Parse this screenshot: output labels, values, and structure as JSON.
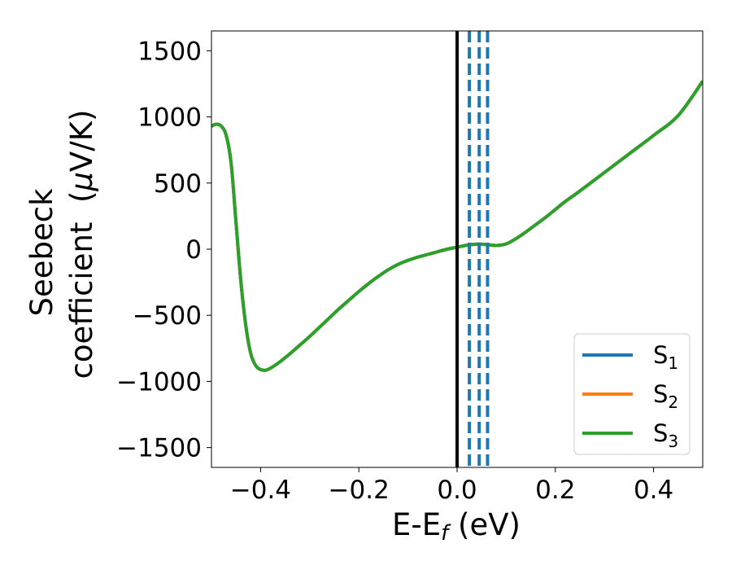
{
  "chart_data": {
    "type": "line",
    "title": "",
    "xlabel": {
      "main": "E-E",
      "sub": "f",
      "suffix": " (eV)"
    },
    "ylabel": {
      "line1": "Seebeck",
      "line2_prefix": "coefficient  (",
      "line2_mu": "μ",
      "line2_suffix": "V/K)"
    },
    "xlim": [
      -0.5,
      0.5
    ],
    "ylim": [
      -1650,
      1650
    ],
    "xticks": [
      -0.4,
      -0.2,
      0.0,
      0.2,
      0.4
    ],
    "xtick_labels": [
      "−0.4",
      "−0.2",
      "0.0",
      "0.2",
      "0.4"
    ],
    "yticks": [
      -1500,
      -1000,
      -500,
      0,
      500,
      1000,
      1500
    ],
    "ytick_labels": [
      "−1500",
      "−1000",
      "−500",
      "0",
      "500",
      "1000",
      "1500"
    ],
    "grid": false,
    "legend_position": "lower-right",
    "fermi_line_x": 0.0,
    "dashed_vlines_x": [
      0.025,
      0.045,
      0.062
    ],
    "dashed_vlines_color": "#1f77b4",
    "series": [
      {
        "name": "S",
        "subscript": "1",
        "color": "#1f77b4",
        "x": [
          -0.5,
          -0.49,
          -0.48,
          -0.47,
          -0.46,
          -0.45,
          -0.44,
          -0.43,
          -0.42,
          -0.41,
          -0.4,
          -0.39,
          -0.38,
          -0.36,
          -0.34,
          -0.32,
          -0.3,
          -0.28,
          -0.26,
          -0.24,
          -0.22,
          -0.2,
          -0.18,
          -0.16,
          -0.14,
          -0.12,
          -0.1,
          -0.08,
          -0.06,
          -0.04,
          -0.02,
          0.0,
          0.02,
          0.04,
          0.06,
          0.08,
          0.1,
          0.12,
          0.14,
          0.16,
          0.18,
          0.2,
          0.22,
          0.25,
          0.3,
          0.35,
          0.4,
          0.45,
          0.5
        ],
        "y": [
          930,
          945,
          930,
          860,
          650,
          200,
          -250,
          -580,
          -790,
          -880,
          -910,
          -915,
          -900,
          -850,
          -790,
          -725,
          -660,
          -590,
          -520,
          -450,
          -385,
          -320,
          -260,
          -205,
          -155,
          -115,
          -85,
          -60,
          -40,
          -20,
          0,
          15,
          30,
          38,
          35,
          28,
          40,
          80,
          130,
          185,
          240,
          300,
          360,
          440,
          580,
          720,
          860,
          1010,
          1270
        ]
      },
      {
        "name": "S",
        "subscript": "2",
        "color": "#ff7f0e",
        "x": [
          -0.5,
          -0.49,
          -0.48,
          -0.47,
          -0.46,
          -0.45,
          -0.44,
          -0.43,
          -0.42,
          -0.41,
          -0.4,
          -0.39,
          -0.38,
          -0.36,
          -0.34,
          -0.32,
          -0.3,
          -0.28,
          -0.26,
          -0.24,
          -0.22,
          -0.2,
          -0.18,
          -0.16,
          -0.14,
          -0.12,
          -0.1,
          -0.08,
          -0.06,
          -0.04,
          -0.02,
          0.0,
          0.02,
          0.04,
          0.06,
          0.08,
          0.1,
          0.12,
          0.14,
          0.16,
          0.18,
          0.2,
          0.22,
          0.25,
          0.3,
          0.35,
          0.4,
          0.45,
          0.5
        ],
        "y": [
          930,
          945,
          930,
          860,
          650,
          200,
          -250,
          -580,
          -790,
          -880,
          -910,
          -915,
          -900,
          -850,
          -790,
          -725,
          -660,
          -590,
          -520,
          -450,
          -385,
          -320,
          -260,
          -205,
          -155,
          -115,
          -85,
          -60,
          -40,
          -20,
          0,
          15,
          30,
          38,
          35,
          28,
          40,
          80,
          130,
          185,
          240,
          300,
          360,
          440,
          580,
          720,
          860,
          1010,
          1270
        ]
      },
      {
        "name": "S",
        "subscript": "3",
        "color": "#2ca02c",
        "x": [
          -0.5,
          -0.49,
          -0.48,
          -0.47,
          -0.46,
          -0.45,
          -0.44,
          -0.43,
          -0.42,
          -0.41,
          -0.4,
          -0.39,
          -0.38,
          -0.36,
          -0.34,
          -0.32,
          -0.3,
          -0.28,
          -0.26,
          -0.24,
          -0.22,
          -0.2,
          -0.18,
          -0.16,
          -0.14,
          -0.12,
          -0.1,
          -0.08,
          -0.06,
          -0.04,
          -0.02,
          0.0,
          0.02,
          0.04,
          0.06,
          0.08,
          0.1,
          0.12,
          0.14,
          0.16,
          0.18,
          0.2,
          0.22,
          0.25,
          0.3,
          0.35,
          0.4,
          0.45,
          0.5
        ],
        "y": [
          930,
          945,
          930,
          860,
          650,
          200,
          -250,
          -580,
          -790,
          -880,
          -910,
          -915,
          -900,
          -850,
          -790,
          -725,
          -660,
          -590,
          -520,
          -450,
          -385,
          -320,
          -260,
          -205,
          -155,
          -115,
          -85,
          -60,
          -40,
          -20,
          0,
          15,
          30,
          38,
          35,
          28,
          40,
          80,
          130,
          185,
          240,
          300,
          360,
          440,
          580,
          720,
          860,
          1010,
          1270
        ]
      }
    ]
  }
}
